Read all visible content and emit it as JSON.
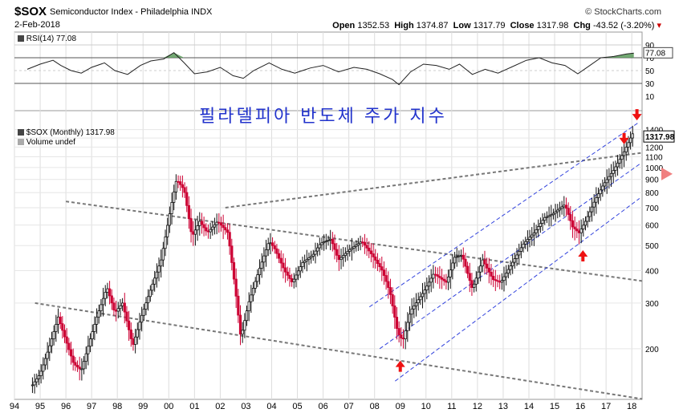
{
  "header": {
    "symbol": "$SOX",
    "name": "Semiconductor Index - Philadelphia INDX",
    "date": "2-Feb-2018",
    "source": "© StockCharts.com",
    "open_label": "Open",
    "open": "1352.53",
    "high_label": "High",
    "high": "1374.87",
    "low_label": "Low",
    "low": "1317.79",
    "close_label": "Close",
    "close": "1317.98",
    "chg_label": "Chg",
    "chg": "-43.52 (-3.20%)"
  },
  "rsi": {
    "label": "RSI(14) 77.08",
    "value_tag": "77.08",
    "levels": [
      "90",
      "70",
      "50",
      "30",
      "10"
    ]
  },
  "price_legend": {
    "label": "$SOX (Monthly) 1317.98",
    "volume": "Volume undef",
    "last_tag": "1317.98"
  },
  "annotation": "필라델피아 반도체 주가 지수",
  "colors": {
    "up": "#111111",
    "down": "#cc0033",
    "channel": "#3344dd",
    "trend": "#777777",
    "rsi_fill": "#5a9a5a",
    "arrow": "#ee1111"
  },
  "chart_data": [
    {
      "type": "line",
      "panel": "RSI(14)",
      "ylim": [
        10,
        90
      ],
      "y_ticks": [
        90,
        70,
        50,
        30,
        10
      ],
      "x_ticks": [
        "94",
        "95",
        "96",
        "97",
        "98",
        "99",
        "00",
        "01",
        "02",
        "03",
        "04",
        "05",
        "06",
        "07",
        "08",
        "09",
        "10",
        "11",
        "12",
        "13",
        "14",
        "15",
        "16",
        "17",
        "18"
      ],
      "series": [
        {
          "name": "RSI(14)",
          "points": [
            [
              1994.5,
              52
            ],
            [
              1995.0,
              60
            ],
            [
              1995.5,
              66
            ],
            [
              1995.8,
              58
            ],
            [
              1996.2,
              50
            ],
            [
              1996.6,
              46
            ],
            [
              1997.0,
              55
            ],
            [
              1997.5,
              62
            ],
            [
              1997.9,
              50
            ],
            [
              1998.4,
              44
            ],
            [
              1998.9,
              58
            ],
            [
              1999.3,
              65
            ],
            [
              1999.8,
              68
            ],
            [
              2000.2,
              78
            ],
            [
              2000.6,
              62
            ],
            [
              2001.0,
              45
            ],
            [
              2001.5,
              48
            ],
            [
              2002.0,
              55
            ],
            [
              2002.5,
              42
            ],
            [
              2002.9,
              38
            ],
            [
              2003.3,
              50
            ],
            [
              2003.9,
              62
            ],
            [
              2004.4,
              52
            ],
            [
              2004.9,
              46
            ],
            [
              2005.5,
              54
            ],
            [
              2006.0,
              58
            ],
            [
              2006.6,
              48
            ],
            [
              2007.2,
              55
            ],
            [
              2007.7,
              52
            ],
            [
              2008.2,
              45
            ],
            [
              2008.7,
              36
            ],
            [
              2008.95,
              28
            ],
            [
              2009.4,
              48
            ],
            [
              2009.9,
              60
            ],
            [
              2010.4,
              58
            ],
            [
              2010.9,
              52
            ],
            [
              2011.3,
              60
            ],
            [
              2011.8,
              44
            ],
            [
              2012.3,
              52
            ],
            [
              2012.8,
              46
            ],
            [
              2013.3,
              55
            ],
            [
              2013.9,
              66
            ],
            [
              2014.4,
              70
            ],
            [
              2014.9,
              62
            ],
            [
              2015.4,
              58
            ],
            [
              2015.9,
              45
            ],
            [
              2016.3,
              56
            ],
            [
              2016.8,
              70
            ],
            [
              2017.3,
              72
            ],
            [
              2017.8,
              76
            ],
            [
              2018.08,
              77.08
            ]
          ]
        }
      ]
    },
    {
      "type": "line",
      "panel": "price",
      "title": "$SOX (Monthly) 1317.98",
      "scale": "log",
      "ylim": [
        135,
        1500
      ],
      "y_ticks": [
        1400,
        1300,
        1200,
        1100,
        1000,
        900,
        800,
        700,
        600,
        500,
        400,
        300,
        200
      ],
      "x_ticks": [
        "94",
        "95",
        "96",
        "97",
        "98",
        "99",
        "00",
        "01",
        "02",
        "03",
        "04",
        "05",
        "06",
        "07",
        "08",
        "09",
        "10",
        "11",
        "12",
        "13",
        "14",
        "15",
        "16",
        "17",
        "18"
      ],
      "series": [
        {
          "name": "$SOX",
          "points": [
            [
              1994.7,
              145
            ],
            [
              1995.0,
              160
            ],
            [
              1995.4,
              210
            ],
            [
              1995.7,
              265
            ],
            [
              1995.9,
              230
            ],
            [
              1996.3,
              175
            ],
            [
              1996.6,
              165
            ],
            [
              1996.9,
              210
            ],
            [
              1997.2,
              265
            ],
            [
              1997.6,
              345
            ],
            [
              1997.9,
              275
            ],
            [
              1998.2,
              300
            ],
            [
              1998.6,
              205
            ],
            [
              1998.9,
              260
            ],
            [
              1999.3,
              340
            ],
            [
              1999.7,
              440
            ],
            [
              2000.1,
              720
            ],
            [
              2000.3,
              900
            ],
            [
              2000.6,
              820
            ],
            [
              2000.9,
              540
            ],
            [
              2001.2,
              620
            ],
            [
              2001.5,
              560
            ],
            [
              2001.9,
              620
            ],
            [
              2002.3,
              560
            ],
            [
              2002.6,
              330
            ],
            [
              2002.8,
              220
            ],
            [
              2003.1,
              300
            ],
            [
              2003.5,
              400
            ],
            [
              2003.9,
              520
            ],
            [
              2004.1,
              490
            ],
            [
              2004.5,
              400
            ],
            [
              2004.8,
              360
            ],
            [
              2005.2,
              430
            ],
            [
              2005.6,
              460
            ],
            [
              2005.9,
              510
            ],
            [
              2006.3,
              530
            ],
            [
              2006.6,
              440
            ],
            [
              2007.0,
              480
            ],
            [
              2007.5,
              520
            ],
            [
              2007.9,
              460
            ],
            [
              2008.3,
              400
            ],
            [
              2008.6,
              330
            ],
            [
              2008.9,
              230
            ],
            [
              2009.1,
              215
            ],
            [
              2009.4,
              280
            ],
            [
              2009.9,
              330
            ],
            [
              2010.3,
              390
            ],
            [
              2010.8,
              360
            ],
            [
              2011.1,
              450
            ],
            [
              2011.4,
              460
            ],
            [
              2011.8,
              340
            ],
            [
              2012.2,
              440
            ],
            [
              2012.6,
              370
            ],
            [
              2012.9,
              360
            ],
            [
              2013.3,
              420
            ],
            [
              2013.8,
              510
            ],
            [
              2014.2,
              560
            ],
            [
              2014.6,
              640
            ],
            [
              2014.9,
              660
            ],
            [
              2015.4,
              720
            ],
            [
              2015.7,
              590
            ],
            [
              2015.95,
              560
            ],
            [
              2016.2,
              620
            ],
            [
              2016.6,
              760
            ],
            [
              2016.9,
              860
            ],
            [
              2017.3,
              980
            ],
            [
              2017.7,
              1150
            ],
            [
              2017.95,
              1300
            ],
            [
              2018.05,
              1360
            ],
            [
              2018.08,
              1317.98
            ]
          ]
        }
      ],
      "annotations": [
        "필라델피아 반도체 주가 지수"
      ]
    }
  ]
}
